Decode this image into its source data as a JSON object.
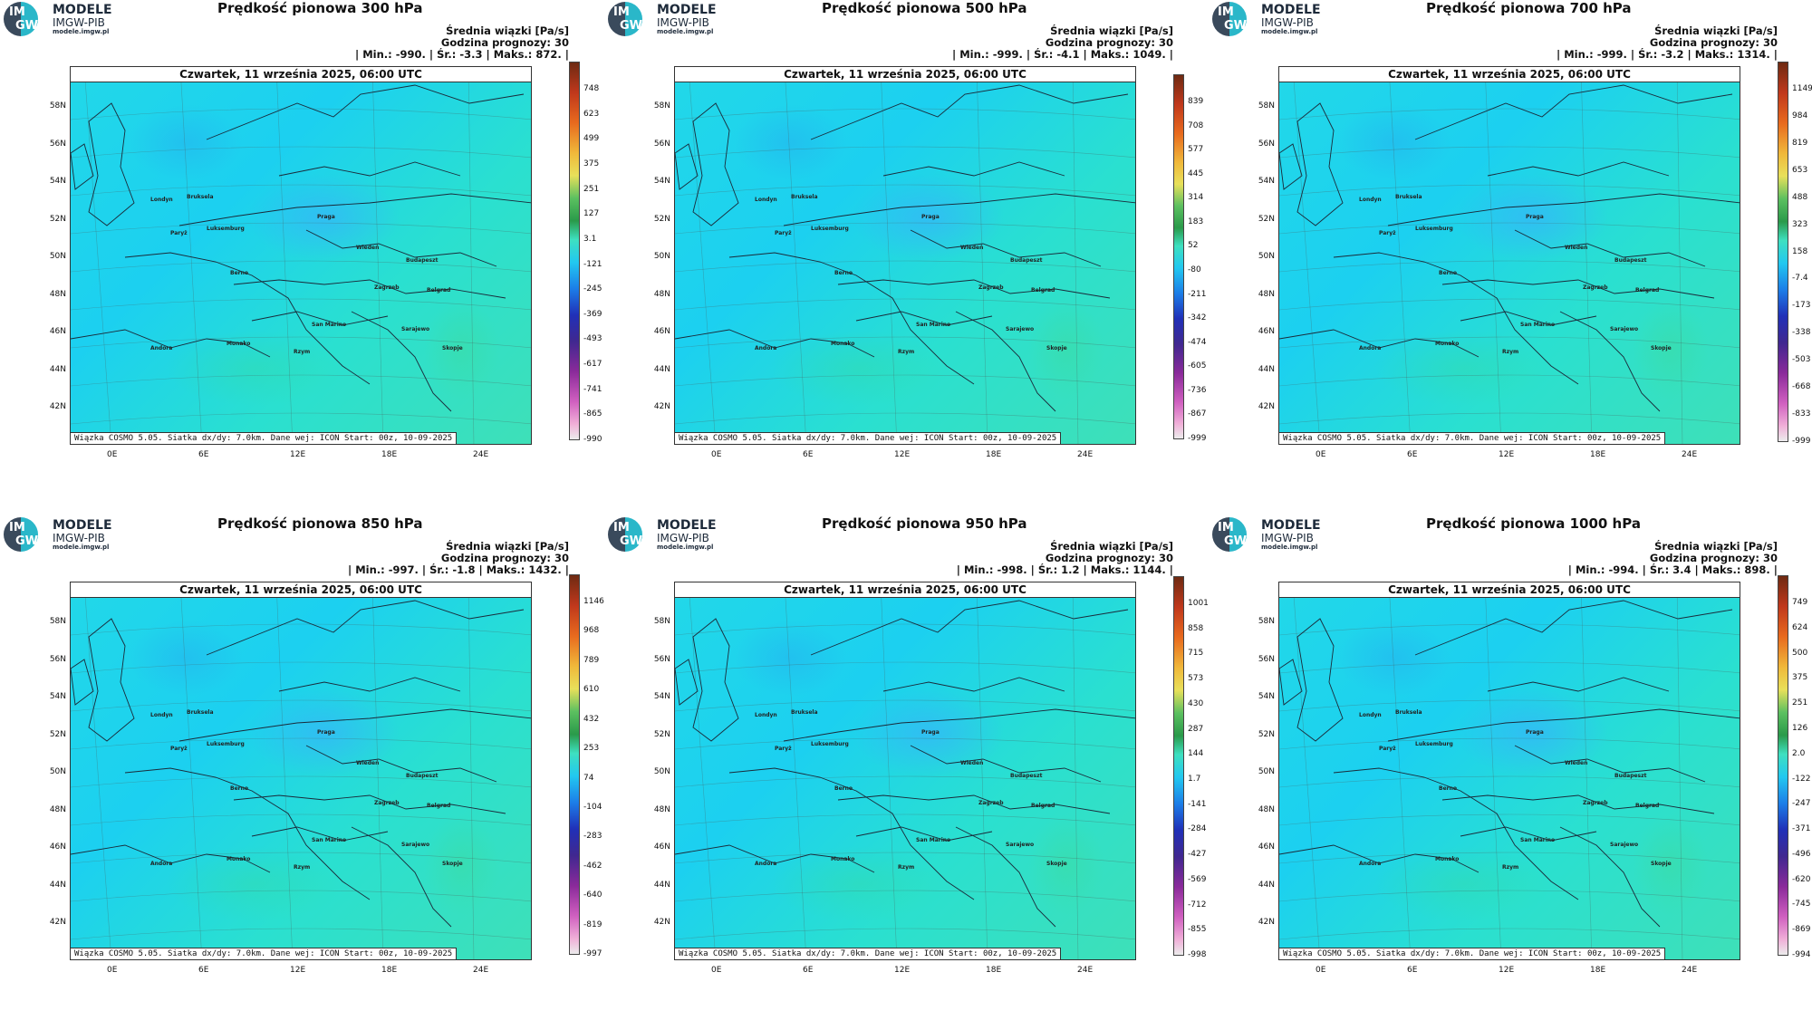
{
  "brand": {
    "l1": "MODELE",
    "l2": "IMGW-PIB",
    "l3": "modele.imgw.pl",
    "mono_top": "IM",
    "mono_bottom": "GW"
  },
  "common": {
    "unit_line": "Średnia wiązki [Pa/s]",
    "forecast_line": "Godzina prognozy: 30",
    "date": "Czwartek, 11 września 2025, 06:00 UTC",
    "footer": "Wiązka COSMO 5.05. Siatka dx/dy: 7.0km. Dane wej: ICON Start: 00z, 10-09-2025",
    "lat_labels": [
      "58N",
      "56N",
      "54N",
      "52N",
      "50N",
      "48N",
      "46N",
      "44N",
      "42N"
    ],
    "lon_labels": [
      "0E",
      "6E",
      "12E",
      "18E",
      "24E"
    ],
    "cities": [
      "Londyn",
      "Bruksela",
      "Paryż",
      "Luksemburg",
      "Praga",
      "Wiedeń",
      "Budapeszt",
      "Berno",
      "Zagrzeb",
      "Belgrad",
      "San Marino",
      "Sarajewo",
      "Skopje",
      "Andora",
      "Monako",
      "Rzym"
    ]
  },
  "panels": [
    {
      "title": "Prędkość pionowa 300 hPa",
      "stats": "| Min.: -990. | Śr.: -3.3 | Maks.: 872. |",
      "ticks": [
        "748",
        "623",
        "499",
        "375",
        "251",
        "127",
        "3.1",
        "-121",
        "-245",
        "-369",
        "-493",
        "-617",
        "-741",
        "-865",
        "-990"
      ]
    },
    {
      "title": "Prędkość pionowa 500 hPa",
      "stats": "| Min.: -999. | Śr.: -4.1 | Maks.: 1049. |",
      "ticks": [
        "839",
        "708",
        "577",
        "445",
        "314",
        "183",
        "52",
        "-80",
        "-211",
        "-342",
        "-474",
        "-605",
        "-736",
        "-867",
        "-999"
      ]
    },
    {
      "title": "Prędkość pionowa 700 hPa",
      "stats": "| Min.: -999. | Śr.: -3.2 | Maks.: 1314. |",
      "ticks": [
        "1149",
        "984",
        "819",
        "653",
        "488",
        "323",
        "158",
        "-7.4",
        "-173",
        "-338",
        "-503",
        "-668",
        "-833",
        "-999"
      ]
    },
    {
      "title": "Prędkość pionowa 850 hPa",
      "stats": "| Min.: -997. | Śr.: -1.8 | Maks.: 1432. |",
      "ticks": [
        "1146",
        "968",
        "789",
        "610",
        "432",
        "253",
        "74",
        "-104",
        "-283",
        "-462",
        "-640",
        "-819",
        "-997"
      ]
    },
    {
      "title": "Prędkość pionowa 950 hPa",
      "stats": "| Min.: -998. | Śr.: 1.2 | Maks.: 1144. |",
      "ticks": [
        "1001",
        "858",
        "715",
        "573",
        "430",
        "287",
        "144",
        "1.7",
        "-141",
        "-284",
        "-427",
        "-569",
        "-712",
        "-855",
        "-998"
      ]
    },
    {
      "title": "Prędkość pionowa 1000 hPa",
      "stats": "| Min.: -994. | Śr.: 3.4 | Maks.: 898. |",
      "ticks": [
        "749",
        "624",
        "500",
        "375",
        "251",
        "126",
        "2.0",
        "-122",
        "-247",
        "-371",
        "-496",
        "-620",
        "-745",
        "-869",
        "-994"
      ]
    }
  ]
}
